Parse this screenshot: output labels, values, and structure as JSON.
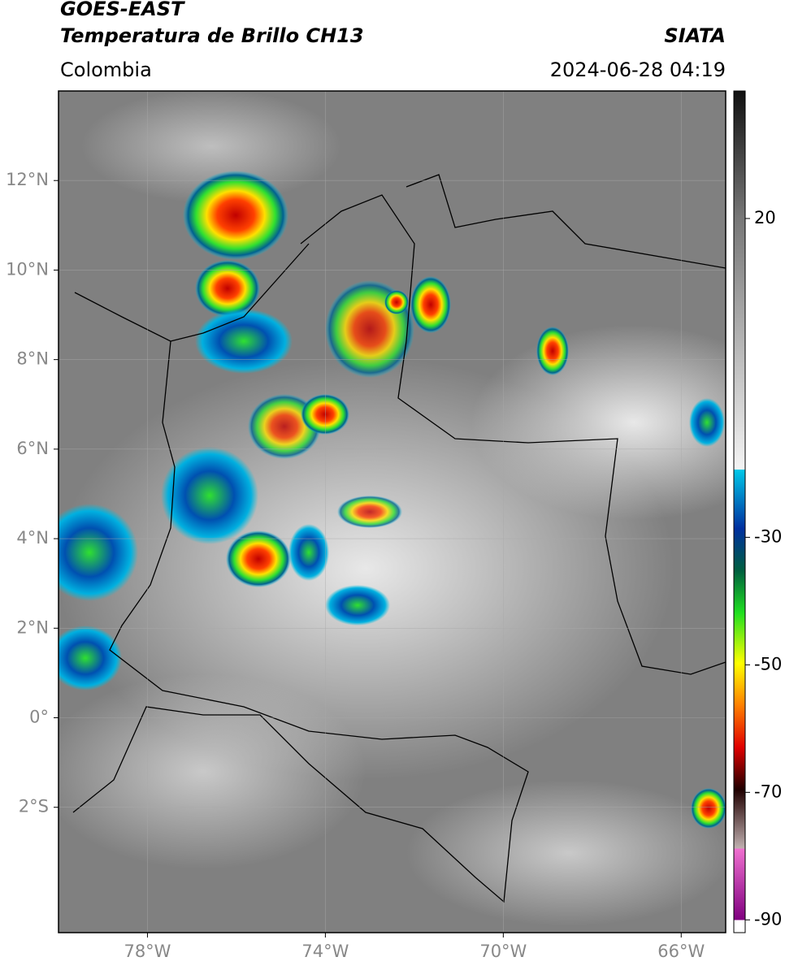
{
  "header": {
    "title": "GOES-EAST",
    "subtitle": "Temperatura de Brillo CH13",
    "source": "SIATA",
    "region": "Colombia",
    "datetime": "2024-06-28 04:19"
  },
  "map": {
    "lonlim": [
      -80,
      -65
    ],
    "latlim": [
      -4.8,
      14
    ],
    "lon_ticks": [
      {
        "value": -78,
        "label": "78°W"
      },
      {
        "value": -74,
        "label": "74°W"
      },
      {
        "value": -70,
        "label": "70°W"
      },
      {
        "value": -66,
        "label": "66°W"
      }
    ],
    "lat_ticks": [
      {
        "value": 12,
        "label": "12°N"
      },
      {
        "value": 10,
        "label": "10°N"
      },
      {
        "value": 8,
        "label": "8°N"
      },
      {
        "value": 6,
        "label": "6°N"
      },
      {
        "value": 4,
        "label": "4°N"
      },
      {
        "value": 2,
        "label": "2°N"
      },
      {
        "value": 0,
        "label": "0°"
      },
      {
        "value": -2,
        "label": "2°S"
      }
    ]
  },
  "colorbar": {
    "range": [
      -92,
      40
    ],
    "ticks": [
      20,
      -30,
      -50,
      -70,
      -90
    ]
  }
}
